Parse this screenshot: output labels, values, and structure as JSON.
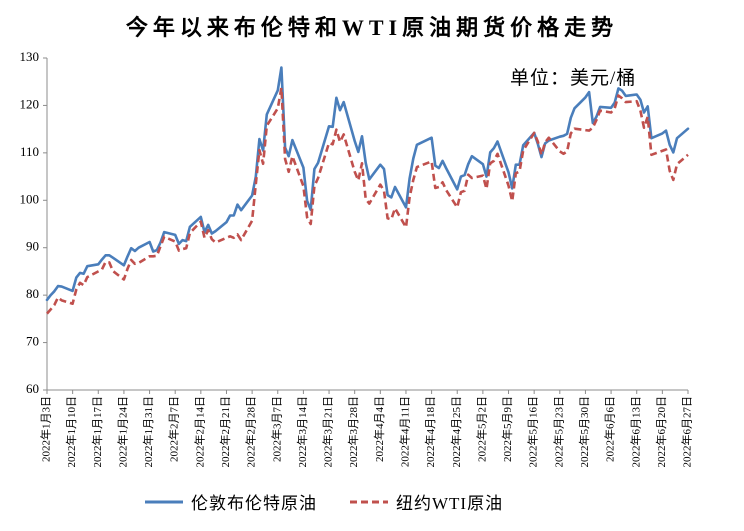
{
  "chart_data": {
    "type": "line",
    "title": "今年以来布伦特和WTI原油期货价格走势",
    "unit_label": "单位：美元/桶",
    "ylim": [
      60,
      130
    ],
    "y_ticks": [
      60,
      70,
      80,
      90,
      100,
      110,
      120,
      130
    ],
    "xlim": [
      "2022-01-03",
      "2022-06-27"
    ],
    "x_ticks": [
      "2022-01-03",
      "2022-01-10",
      "2022-01-17",
      "2022-01-24",
      "2022-01-31",
      "2022-02-07",
      "2022-02-14",
      "2022-02-21",
      "2022-02-28",
      "2022-03-07",
      "2022-03-14",
      "2022-03-21",
      "2022-03-28",
      "2022-04-04",
      "2022-04-11",
      "2022-04-18",
      "2022-04-25",
      "2022-05-02",
      "2022-05-09",
      "2022-05-16",
      "2022-05-23",
      "2022-05-30",
      "2022-06-06",
      "2022-06-13",
      "2022-06-20",
      "2022-06-27"
    ],
    "x_tick_labels": [
      "2022年1月3日",
      "2022年1月10日",
      "2022年1月17日",
      "2022年1月24日",
      "2022年1月31日",
      "2022年2月7日",
      "2022年2月14日",
      "2022年2月21日",
      "2022年2月28日",
      "2022年3月7日",
      "2022年3月14日",
      "2022年3月21日",
      "2022年3月28日",
      "2022年4月4日",
      "2022年4月11日",
      "2022年4月18日",
      "2022年4月25日",
      "2022年5月2日",
      "2022年5月9日",
      "2022年5月16日",
      "2022年5月23日",
      "2022年5月30日",
      "2022年6月6日",
      "2022年6月13日",
      "2022年6月20日",
      "2022年6月27日"
    ],
    "grid": false,
    "legend": "bottom",
    "x": [
      "2022-01-03",
      "2022-01-04",
      "2022-01-05",
      "2022-01-06",
      "2022-01-07",
      "2022-01-10",
      "2022-01-11",
      "2022-01-12",
      "2022-01-13",
      "2022-01-14",
      "2022-01-17",
      "2022-01-18",
      "2022-01-19",
      "2022-01-20",
      "2022-01-21",
      "2022-01-24",
      "2022-01-25",
      "2022-01-26",
      "2022-01-27",
      "2022-01-28",
      "2022-01-31",
      "2022-02-01",
      "2022-02-02",
      "2022-02-03",
      "2022-02-04",
      "2022-02-07",
      "2022-02-08",
      "2022-02-09",
      "2022-02-10",
      "2022-02-11",
      "2022-02-14",
      "2022-02-15",
      "2022-02-16",
      "2022-02-17",
      "2022-02-18",
      "2022-02-21",
      "2022-02-22",
      "2022-02-23",
      "2022-02-24",
      "2022-02-25",
      "2022-02-28",
      "2022-03-01",
      "2022-03-02",
      "2022-03-03",
      "2022-03-04",
      "2022-03-07",
      "2022-03-08",
      "2022-03-09",
      "2022-03-10",
      "2022-03-11",
      "2022-03-14",
      "2022-03-15",
      "2022-03-16",
      "2022-03-17",
      "2022-03-18",
      "2022-03-21",
      "2022-03-22",
      "2022-03-23",
      "2022-03-24",
      "2022-03-25",
      "2022-03-28",
      "2022-03-29",
      "2022-03-30",
      "2022-03-31",
      "2022-04-01",
      "2022-04-04",
      "2022-04-05",
      "2022-04-06",
      "2022-04-07",
      "2022-04-08",
      "2022-04-11",
      "2022-04-12",
      "2022-04-13",
      "2022-04-14",
      "2022-04-15",
      "2022-04-18",
      "2022-04-19",
      "2022-04-20",
      "2022-04-21",
      "2022-04-22",
      "2022-04-25",
      "2022-04-26",
      "2022-04-27",
      "2022-04-28",
      "2022-04-29",
      "2022-05-02",
      "2022-05-03",
      "2022-05-04",
      "2022-05-05",
      "2022-05-06",
      "2022-05-09",
      "2022-05-10",
      "2022-05-11",
      "2022-05-12",
      "2022-05-13",
      "2022-05-16",
      "2022-05-17",
      "2022-05-18",
      "2022-05-19",
      "2022-05-20",
      "2022-05-23",
      "2022-05-24",
      "2022-05-25",
      "2022-05-26",
      "2022-05-27",
      "2022-05-30",
      "2022-05-31",
      "2022-06-01",
      "2022-06-02",
      "2022-06-03",
      "2022-06-06",
      "2022-06-07",
      "2022-06-08",
      "2022-06-09",
      "2022-06-10",
      "2022-06-13",
      "2022-06-14",
      "2022-06-15",
      "2022-06-16",
      "2022-06-17",
      "2022-06-20",
      "2022-06-21",
      "2022-06-22",
      "2022-06-23",
      "2022-06-24",
      "2022-06-27"
    ],
    "series": [
      {
        "name": "伦敦布伦特原油",
        "color": "#4a7ebb",
        "style": "solid",
        "values": [
          79.0,
          80.0,
          80.8,
          81.9,
          81.8,
          80.9,
          83.7,
          84.7,
          84.5,
          86.1,
          86.5,
          87.5,
          88.4,
          88.4,
          87.9,
          86.3,
          88.2,
          89.9,
          89.3,
          90.0,
          91.2,
          89.2,
          89.5,
          91.1,
          93.3,
          92.7,
          90.8,
          91.6,
          91.4,
          94.4,
          96.5,
          93.3,
          94.8,
          93.0,
          93.5,
          95.4,
          96.8,
          96.8,
          99.1,
          97.9,
          101.0,
          105.0,
          112.9,
          110.5,
          118.1,
          123.2,
          128.0,
          111.1,
          109.3,
          112.7,
          106.9,
          99.9,
          98.0,
          106.6,
          107.9,
          115.6,
          115.5,
          121.6,
          119.0,
          120.7,
          112.5,
          110.2,
          113.5,
          107.9,
          104.4,
          107.5,
          106.6,
          101.1,
          100.6,
          102.8,
          98.5,
          104.6,
          108.8,
          111.7,
          null,
          113.2,
          107.3,
          106.8,
          108.3,
          106.7,
          102.3,
          105.0,
          105.3,
          107.6,
          109.3,
          107.6,
          105.0,
          110.1,
          111.0,
          112.4,
          105.9,
          102.5,
          107.5,
          107.5,
          111.6,
          114.2,
          111.9,
          109.1,
          112.0,
          112.6,
          113.4,
          113.6,
          114.0,
          117.4,
          119.4,
          121.7,
          122.8,
          116.3,
          117.6,
          119.7,
          119.5,
          120.6,
          123.6,
          123.1,
          122.0,
          122.3,
          121.2,
          118.5,
          119.8,
          113.1,
          114.1,
          114.7,
          111.7,
          110.1,
          113.1,
          115.1
        ]
      },
      {
        "name": "纽约WTI原油",
        "color": "#c0504d",
        "style": "dashed",
        "values": [
          76.1,
          77.0,
          77.9,
          79.5,
          78.9,
          78.2,
          81.2,
          82.6,
          82.1,
          83.8,
          null,
          85.4,
          87.0,
          86.9,
          85.1,
          83.3,
          85.6,
          87.4,
          86.6,
          86.8,
          88.2,
          88.2,
          88.3,
          90.3,
          92.3,
          91.3,
          89.4,
          89.7,
          89.9,
          93.1,
          95.5,
          92.1,
          93.7,
          91.8,
          91.1,
          null,
          92.4,
          92.1,
          92.8,
          91.6,
          95.7,
          103.4,
          110.6,
          107.7,
          115.7,
          119.4,
          123.7,
          108.7,
          106.0,
          109.3,
          103.0,
          96.4,
          95.0,
          103.0,
          104.7,
          112.1,
          111.8,
          114.9,
          112.3,
          113.9,
          106.0,
          104.2,
          107.8,
          100.3,
          99.3,
          103.3,
          102.0,
          96.2,
          96.0,
          98.3,
          94.3,
          100.6,
          104.3,
          107.0,
          null,
          108.2,
          102.6,
          102.8,
          103.8,
          102.1,
          98.5,
          101.7,
          102.0,
          105.4,
          104.7,
          105.2,
          102.4,
          107.8,
          108.3,
          109.8,
          103.1,
          99.8,
          105.7,
          106.1,
          110.5,
          114.2,
          112.4,
          109.6,
          112.2,
          113.2,
          110.3,
          109.8,
          110.3,
          114.1,
          115.1,
          null,
          114.7,
          115.3,
          116.9,
          118.9,
          118.5,
          119.4,
          122.1,
          121.5,
          120.7,
          120.9,
          118.9,
          115.3,
          117.6,
          109.6,
          null,
          110.7,
          106.2,
          104.3,
          107.6,
          109.6
        ]
      }
    ]
  }
}
